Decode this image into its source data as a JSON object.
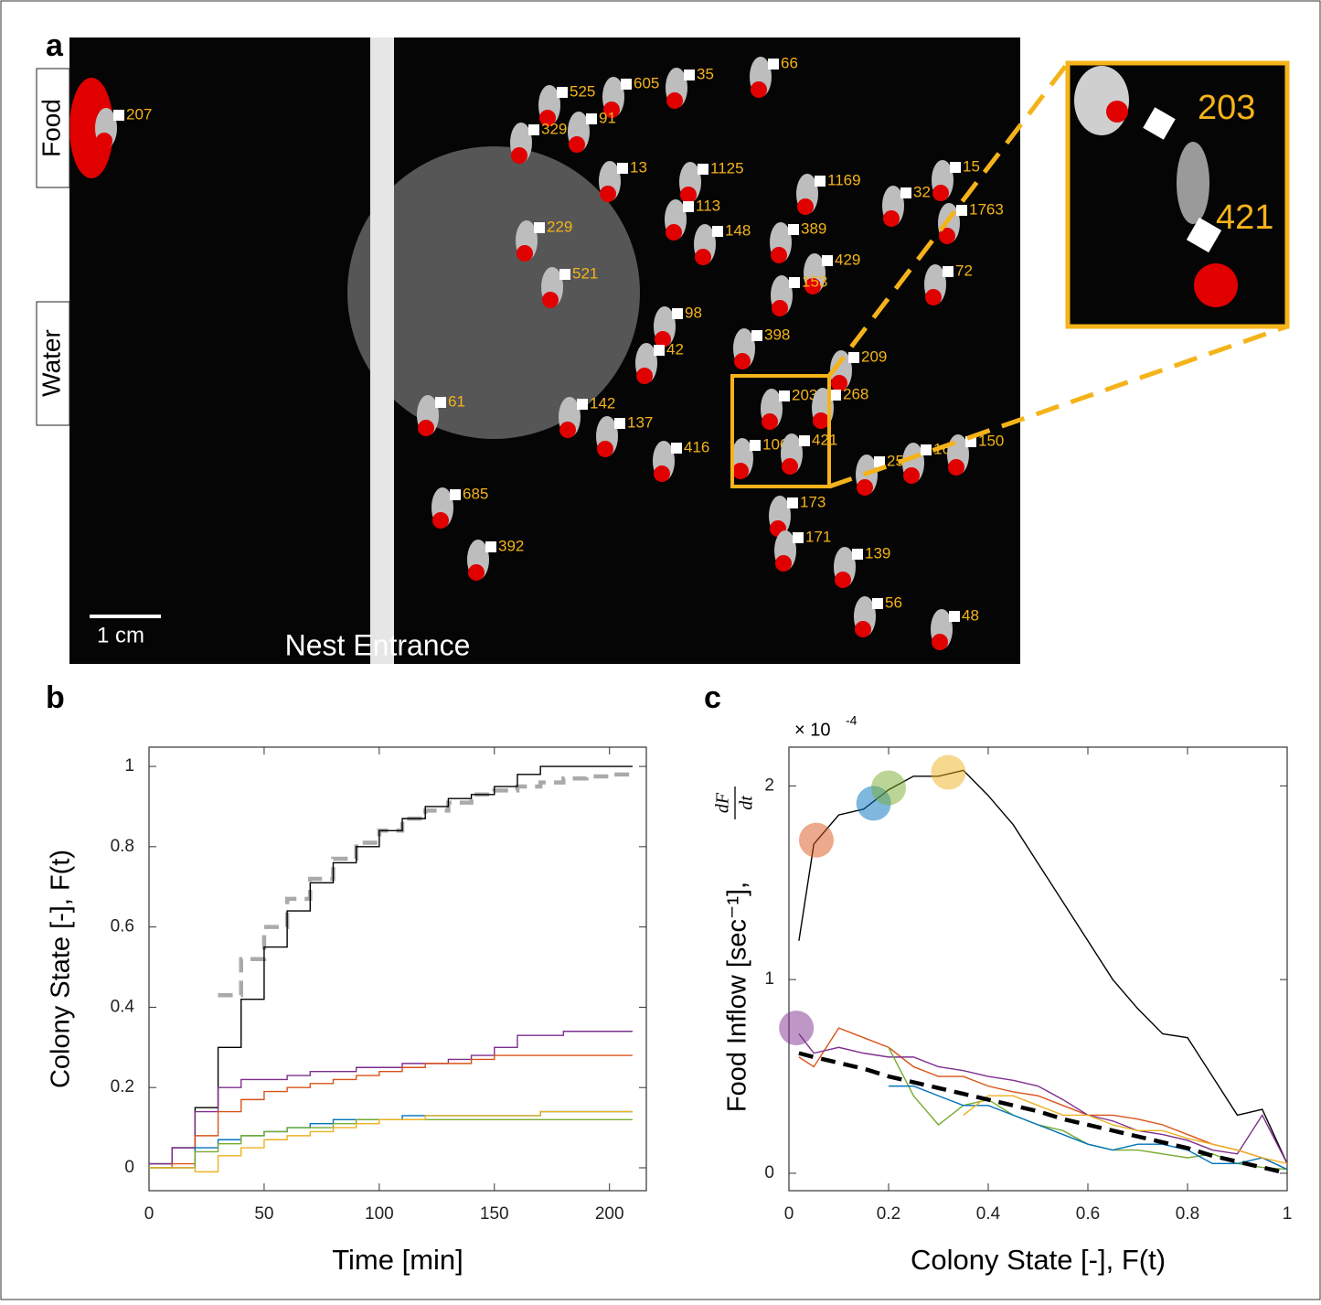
{
  "panel_a": {
    "panel_label": "a",
    "food_label": "Food",
    "water_label": "Water",
    "scale_label": "1 cm",
    "entrance_label": "Nest Entrance",
    "ant_ids": [
      "207",
      "525",
      "605",
      "35",
      "66",
      "329",
      "91",
      "13",
      "1125",
      "1169",
      "15",
      "32",
      "1763",
      "229",
      "113",
      "148",
      "389",
      "429",
      "72",
      "521",
      "153",
      "98",
      "398",
      "42",
      "209",
      "61",
      "142",
      "137",
      "203",
      "268",
      "1069",
      "421",
      "416",
      "250",
      "16",
      "150",
      "685",
      "173",
      "171",
      "139",
      "392",
      "56",
      "48"
    ],
    "inset_ids": [
      "203",
      "421"
    ]
  },
  "chart_data": [
    {
      "type": "line",
      "panel_label": "b",
      "step": true,
      "xlabel": "Time [min]",
      "ylabel": "Colony State [-], F(t)",
      "xlim": [
        0,
        216
      ],
      "xticks": [
        0,
        50,
        100,
        150,
        200
      ],
      "ylim": [
        -0.057,
        1.048
      ],
      "yticks": [
        0,
        0.2,
        0.4,
        0.6,
        0.8,
        1
      ],
      "x": [
        0,
        10,
        20,
        30,
        40,
        50,
        60,
        70,
        80,
        90,
        100,
        110,
        120,
        130,
        140,
        150,
        160,
        170,
        180,
        190,
        200,
        210
      ],
      "series": [
        {
          "color": "#aaaaaa",
          "dashed": true,
          "values": [
            null,
            null,
            null,
            0.43,
            0.52,
            0.6,
            0.67,
            0.72,
            0.77,
            0.81,
            0.84,
            0.87,
            0.89,
            0.91,
            0.93,
            0.94,
            0.95,
            0.96,
            0.97,
            0.975,
            0.98,
            0.985
          ]
        },
        {
          "color": "#000000",
          "values": [
            0.01,
            0.05,
            0.15,
            0.3,
            0.42,
            0.55,
            0.64,
            0.71,
            0.76,
            0.8,
            0.84,
            0.87,
            0.9,
            0.92,
            0.93,
            0.95,
            0.98,
            1.0,
            1.0,
            1.0,
            1.0,
            1.0
          ]
        },
        {
          "color": "#7e2f8e",
          "values": [
            0.01,
            0.05,
            0.14,
            0.2,
            0.22,
            0.22,
            0.23,
            0.24,
            0.24,
            0.25,
            0.25,
            0.26,
            0.26,
            0.27,
            0.28,
            0.3,
            0.33,
            0.33,
            0.34,
            0.34,
            0.34,
            0.34
          ]
        },
        {
          "color": "#d95319",
          "values": [
            0,
            0.01,
            0.08,
            0.14,
            0.17,
            0.19,
            0.2,
            0.21,
            0.22,
            0.23,
            0.24,
            0.25,
            0.26,
            0.26,
            0.27,
            0.28,
            0.28,
            0.28,
            0.28,
            0.28,
            0.28,
            0.28
          ]
        },
        {
          "color": "#0072bd",
          "values": [
            0,
            0,
            0.05,
            0.07,
            0.08,
            0.09,
            0.1,
            0.11,
            0.12,
            0.12,
            0.12,
            0.13,
            0.13,
            0.13,
            0.13,
            0.13,
            0.13,
            0.14,
            0.14,
            0.14,
            0.14,
            0.14
          ]
        },
        {
          "color": "#77ac30",
          "values": [
            0,
            0,
            0.04,
            0.06,
            0.08,
            0.09,
            0.1,
            0.1,
            0.11,
            0.12,
            0.12,
            0.12,
            0.12,
            0.12,
            0.12,
            0.12,
            0.12,
            0.12,
            0.12,
            0.12,
            0.12,
            0.12
          ]
        },
        {
          "color": "#edb120",
          "values": [
            0,
            0,
            -0.01,
            0.03,
            0.05,
            0.07,
            0.08,
            0.09,
            0.1,
            0.11,
            0.12,
            0.12,
            0.13,
            0.13,
            0.13,
            0.13,
            0.13,
            0.14,
            0.14,
            0.14,
            0.14,
            0.14
          ]
        }
      ]
    },
    {
      "type": "line",
      "panel_label": "c",
      "step": false,
      "xlabel": "Colony State [-], F(t)",
      "ylabel": "Food Inflow [sec⁻¹],",
      "ylabel_fraction": {
        "numerator": "dF",
        "denominator": "dt"
      },
      "y_multiplier": {
        "base": "× 10",
        "exponent": "-4"
      },
      "xlim": [
        0,
        1
      ],
      "xticks": [
        0,
        0.2,
        0.4,
        0.6,
        0.8,
        1
      ],
      "ylim": [
        -0.09,
        2.2
      ],
      "yticks": [
        0,
        1,
        2
      ],
      "x": [
        0.02,
        0.05,
        0.1,
        0.15,
        0.2,
        0.25,
        0.3,
        0.35,
        0.4,
        0.45,
        0.5,
        0.55,
        0.6,
        0.65,
        0.7,
        0.75,
        0.8,
        0.85,
        0.9,
        0.95,
        1
      ],
      "series": [
        {
          "color": "#000000",
          "values": [
            1.2,
            1.7,
            1.85,
            1.88,
            1.98,
            2.05,
            2.05,
            2.08,
            1.95,
            1.8,
            1.6,
            1.4,
            1.2,
            1.0,
            0.85,
            0.72,
            0.7,
            0.5,
            0.3,
            0.33,
            0.05
          ]
        },
        {
          "color": "#d95319",
          "values": [
            0.6,
            0.55,
            0.75,
            0.7,
            0.65,
            0.55,
            0.5,
            0.5,
            0.45,
            0.42,
            0.4,
            0.35,
            0.3,
            0.3,
            0.28,
            0.25,
            0.2,
            0.15,
            0.12,
            0.08,
            0.02
          ]
        },
        {
          "color": "#7e2f8e",
          "values": [
            0.72,
            0.62,
            0.65,
            0.62,
            0.6,
            0.6,
            0.55,
            0.53,
            0.5,
            0.48,
            0.45,
            0.38,
            0.3,
            0.27,
            0.22,
            0.2,
            0.17,
            0.12,
            0.1,
            0.3,
            0.05
          ]
        },
        {
          "color": "#77ac30",
          "values": [
            null,
            null,
            null,
            null,
            0.65,
            0.4,
            0.25,
            0.35,
            0.38,
            0.3,
            0.25,
            0.22,
            0.15,
            0.12,
            0.12,
            0.1,
            0.08,
            0.1,
            0.05,
            0.03,
            0.02
          ]
        },
        {
          "color": "#0072bd",
          "values": [
            null,
            null,
            null,
            null,
            0.45,
            0.45,
            0.4,
            0.35,
            0.35,
            0.3,
            0.25,
            0.2,
            0.15,
            0.12,
            0.15,
            0.15,
            0.12,
            0.05,
            0.05,
            0.08,
            0.02
          ]
        },
        {
          "color": "#edb120",
          "values": [
            null,
            null,
            null,
            null,
            null,
            null,
            null,
            0.3,
            0.4,
            0.4,
            0.35,
            0.3,
            0.3,
            0.25,
            0.22,
            0.22,
            0.18,
            0.15,
            0.12,
            0.08,
            0.05
          ]
        },
        {
          "color": "#000000",
          "dashed": true,
          "values": [
            0.62,
            0.6,
            0.57,
            0.54,
            0.5,
            0.47,
            0.44,
            0.41,
            0.38,
            0.35,
            0.32,
            0.28,
            0.25,
            0.22,
            0.19,
            0.16,
            0.13,
            0.09,
            0.06,
            0.03,
            0
          ]
        }
      ],
      "markers": [
        {
          "x": 0.015,
          "y": 0.75,
          "color": "#7e2f8e"
        },
        {
          "x": 0.055,
          "y": 1.72,
          "color": "#d95319"
        },
        {
          "x": 0.17,
          "y": 1.91,
          "color": "#0072bd"
        },
        {
          "x": 0.2,
          "y": 1.99,
          "color": "#77ac30"
        },
        {
          "x": 0.32,
          "y": 2.07,
          "color": "#edb120"
        }
      ]
    }
  ]
}
